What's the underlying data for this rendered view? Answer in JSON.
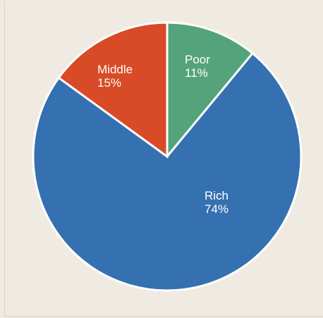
{
  "chart_data": {
    "type": "pie",
    "title": "",
    "start_angle_deg": 0,
    "direction": "clockwise",
    "slices": [
      {
        "name": "Poor",
        "value": 11,
        "label": "Poor",
        "pct_label": "11%",
        "color": "#55a37a"
      },
      {
        "name": "Rich",
        "value": 74,
        "label": "Rich",
        "pct_label": "74%",
        "color": "#3570b0"
      },
      {
        "name": "Middle",
        "value": 15,
        "label": "Middle",
        "pct_label": "15%",
        "color": "#d94a27"
      }
    ],
    "separator_color": "#ffffff",
    "background_color": "#efebe2"
  }
}
